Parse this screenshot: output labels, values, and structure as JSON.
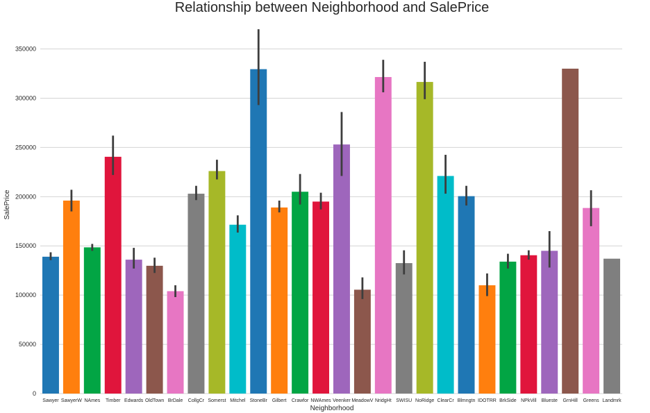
{
  "chart_data": {
    "type": "bar",
    "title": "Relationship between Neighborhood and SalePrice",
    "xlabel": "Neighborhood",
    "ylabel": "SalePrice",
    "ylim": [
      0,
      380000
    ],
    "yticks": [
      0,
      50000,
      100000,
      150000,
      200000,
      250000,
      300000,
      350000
    ],
    "grid": true,
    "categories": [
      "Sawyer",
      "SawyerW",
      "NAmes",
      "Timber",
      "Edwards",
      "OldTown",
      "BrDale",
      "CollgCr",
      "Somerst",
      "Mitchel",
      "StoneBr",
      "Gilbert",
      "Crawfor",
      "NWAmes",
      "Veenker",
      "MeadowV",
      "NridgHt",
      "SWISU",
      "NoRidge",
      "ClearCr",
      "Blmngtn",
      "IDOTRR",
      "BrkSide",
      "NPkVill",
      "Blueste",
      "GrnHill",
      "Greens",
      "Landmrk"
    ],
    "values": [
      139000,
      196000,
      148500,
      240500,
      136000,
      129800,
      104000,
      203000,
      226000,
      171500,
      329500,
      189000,
      205000,
      195000,
      253000,
      105500,
      321500,
      132500,
      316500,
      221000,
      200500,
      110000,
      134000,
      140500,
      145000,
      330000,
      188500,
      137000
    ],
    "error_low": [
      135500,
      185000,
      145000,
      222000,
      127000,
      122500,
      98000,
      196500,
      217500,
      163500,
      293000,
      184000,
      192000,
      187000,
      221000,
      96000,
      306000,
      121000,
      299000,
      203000,
      191000,
      99000,
      127000,
      136000,
      128000,
      330000,
      170000,
      137000
    ],
    "error_high": [
      143500,
      207000,
      152000,
      262000,
      148000,
      138000,
      110000,
      211000,
      237500,
      181000,
      370000,
      196000,
      223000,
      204000,
      286000,
      118000,
      339000,
      145500,
      337000,
      242500,
      211000,
      122000,
      142000,
      145500,
      165000,
      330000,
      206500,
      137000
    ],
    "colors": [
      "#1f77b4",
      "#ff7f0e",
      "#02a544",
      "#e0153c",
      "#9e66bc",
      "#8c574c",
      "#e776c3",
      "#7f7f7f",
      "#a6b828",
      "#00bcc9",
      "#1f77b4",
      "#ff7f0e",
      "#02a544",
      "#e0153c",
      "#9e66bc",
      "#8c574c",
      "#e776c3",
      "#7f7f7f",
      "#a6b828",
      "#00bcc9",
      "#1f77b4",
      "#ff7f0e",
      "#02a544",
      "#e0153c",
      "#9e66bc",
      "#8c574c",
      "#e776c3",
      "#7f7f7f"
    ]
  }
}
